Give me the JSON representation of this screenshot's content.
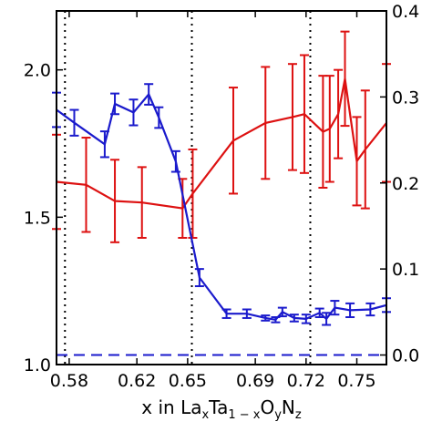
{
  "chart_data": {
    "type": "line",
    "xlabel": {
      "prefix": "x in La",
      "parts": [
        {
          "t": "x",
          "s": true
        },
        {
          "t": "Ta",
          "s": false
        },
        {
          "t": "1 − x",
          "s": true
        },
        {
          "t": "O",
          "s": false
        },
        {
          "t": "y",
          "s": true
        },
        {
          "t": "N",
          "s": false
        },
        {
          "t": "z",
          "s": true
        }
      ]
    },
    "ylabel_left": "",
    "ylabel_right": "",
    "xlim": [
      0.5725,
      0.7675
    ],
    "ylim_left": [
      1.0,
      2.2
    ],
    "ylim_right": [
      -0.0111,
      0.4
    ],
    "x_ticks": [
      0.58,
      0.62,
      0.65,
      0.69,
      0.72,
      0.75
    ],
    "x_tick_labels": [
      "0.58",
      "0.62",
      "0.65",
      "0.69",
      "0.72",
      "0.75"
    ],
    "y_left_ticks": [
      1.0,
      1.5,
      2.0
    ],
    "y_left_tick_labels": [
      "1.0",
      "1.5",
      "2.0"
    ],
    "y_right_ticks": [
      0.0,
      0.1,
      0.2,
      0.3,
      0.4
    ],
    "y_right_tick_labels": [
      "0.0",
      "0.1",
      "0.2",
      "0.3",
      "0.4"
    ],
    "vlines": [
      0.5775,
      0.6525,
      0.7225
    ],
    "hline_right": 0.0,
    "grid": false,
    "series": [
      {
        "axis": "left",
        "color": "#dd1111",
        "x": [
          0.5725,
          0.59,
          0.607,
          0.623,
          0.647,
          0.653,
          0.677,
          0.696,
          0.712,
          0.719,
          0.73,
          0.734,
          0.739,
          0.743,
          0.75,
          0.755,
          0.7675
        ],
        "y": [
          1.62,
          1.61,
          1.555,
          1.55,
          1.53,
          1.58,
          1.76,
          1.82,
          1.84,
          1.85,
          1.79,
          1.8,
          1.85,
          1.97,
          1.69,
          1.73,
          1.82
        ],
        "err": [
          0.16,
          0.16,
          0.14,
          0.12,
          0.1,
          0.15,
          0.18,
          0.19,
          0.18,
          0.2,
          0.19,
          0.18,
          0.15,
          0.16,
          0.15,
          0.2,
          0.2
        ]
      },
      {
        "axis": "right",
        "color": "#1a1acc",
        "x": [
          0.5725,
          0.583,
          0.601,
          0.607,
          0.618,
          0.627,
          0.633,
          0.643,
          0.657,
          0.673,
          0.685,
          0.696,
          0.702,
          0.706,
          0.713,
          0.72,
          0.728,
          0.732,
          0.737,
          0.746,
          0.758,
          0.7675
        ],
        "y": [
          0.285,
          0.27,
          0.245,
          0.292,
          0.282,
          0.303,
          0.276,
          0.225,
          0.09,
          0.048,
          0.048,
          0.043,
          0.041,
          0.05,
          0.043,
          0.042,
          0.049,
          0.042,
          0.055,
          0.052,
          0.053,
          0.058
        ],
        "err": [
          0.02,
          0.015,
          0.015,
          0.012,
          0.015,
          0.012,
          0.012,
          0.012,
          0.01,
          0.005,
          0.005,
          0.003,
          0.003,
          0.005,
          0.004,
          0.005,
          0.005,
          0.007,
          0.008,
          0.008,
          0.007,
          0.008
        ]
      }
    ]
  }
}
